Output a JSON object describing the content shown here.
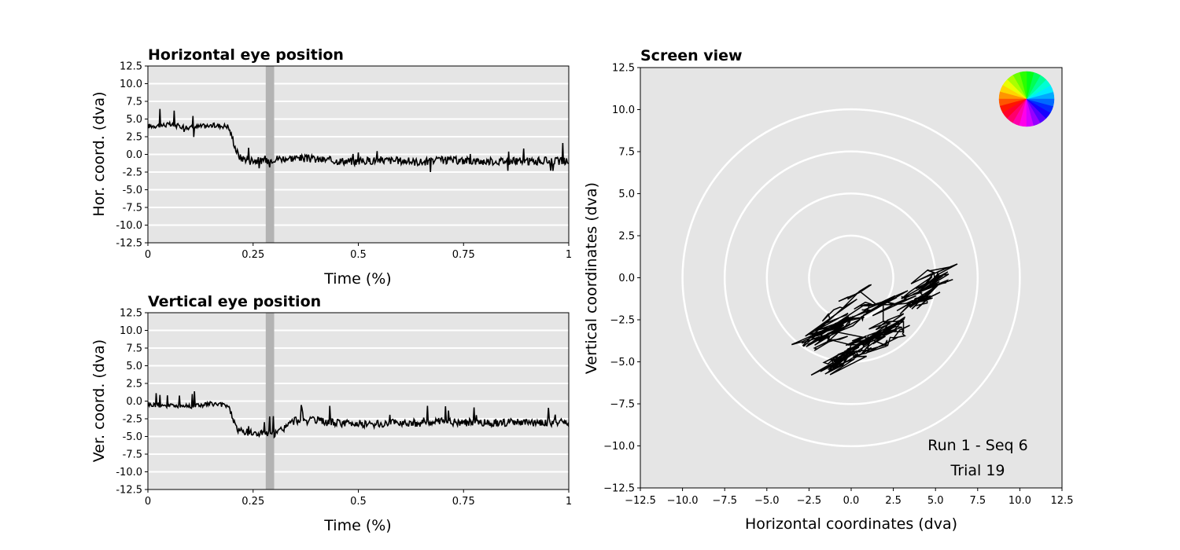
{
  "chart_data": [
    {
      "type": "line",
      "title": "Horizontal eye position",
      "xlabel": "Time (%)",
      "ylabel": "Hor. coord. (dva)",
      "xlim": [
        0,
        1
      ],
      "ylim": [
        -12.5,
        12.5
      ],
      "xticks": [
        "0",
        "0.25",
        "0.5",
        "0.75",
        "1"
      ],
      "yticks": [
        "-12.5",
        "-10.0",
        "-7.5",
        "-5.0",
        "-2.5",
        "0.0",
        "2.5",
        "5.0",
        "7.5",
        "10.0",
        "12.5"
      ],
      "grid": "horizontal",
      "shaded_x_range": [
        0.28,
        0.3
      ],
      "series": [
        {
          "x": [
            0,
            0.05,
            0.1,
            0.15,
            0.19,
            0.2,
            0.21,
            0.22,
            0.25,
            0.28,
            0.3,
            0.35,
            0.4,
            0.45,
            0.5,
            0.55,
            0.6,
            0.65,
            0.7,
            0.75,
            0.8,
            0.85,
            0.9,
            0.95,
            1
          ],
          "y": [
            4.0,
            4.2,
            3.8,
            4.1,
            4.0,
            2.5,
            0.5,
            -0.5,
            -0.8,
            -1.0,
            -0.6,
            -0.5,
            -0.7,
            -0.9,
            -1.0,
            -0.8,
            -0.9,
            -1.1,
            -0.8,
            -0.9,
            -1.0,
            -0.9,
            -1.0,
            -0.9,
            -1.0
          ]
        }
      ]
    },
    {
      "type": "line",
      "title": "Vertical eye position",
      "xlabel": "Time (%)",
      "ylabel": "Ver. coord. (dva)",
      "xlim": [
        0,
        1
      ],
      "ylim": [
        -12.5,
        12.5
      ],
      "xticks": [
        "0",
        "0.25",
        "0.5",
        "0.75",
        "1"
      ],
      "yticks": [
        "-12.5",
        "-10.0",
        "-7.5",
        "-5.0",
        "-2.5",
        "0.0",
        "2.5",
        "5.0",
        "7.5",
        "10.0",
        "12.5"
      ],
      "grid": "horizontal",
      "shaded_x_range": [
        0.28,
        0.3
      ],
      "series": [
        {
          "x": [
            0,
            0.05,
            0.1,
            0.15,
            0.19,
            0.2,
            0.21,
            0.22,
            0.25,
            0.28,
            0.3,
            0.33,
            0.35,
            0.4,
            0.45,
            0.5,
            0.55,
            0.6,
            0.65,
            0.7,
            0.75,
            0.8,
            0.85,
            0.9,
            0.95,
            1
          ],
          "y": [
            -0.5,
            -0.6,
            -0.7,
            -0.4,
            -0.6,
            -2.0,
            -3.8,
            -4.3,
            -4.6,
            -4.5,
            -4.8,
            -3.5,
            -2.7,
            -2.8,
            -3.1,
            -3.2,
            -3.3,
            -3.0,
            -3.1,
            -2.9,
            -3.0,
            -3.1,
            -3.0,
            -3.1,
            -3.0,
            -3.1
          ]
        }
      ]
    },
    {
      "type": "line",
      "title": "Screen view",
      "xlabel": "Horizontal coordinates (dva)",
      "ylabel": "Vertical coordinates (dva)",
      "xlim": [
        -12.5,
        12.5
      ],
      "ylim": [
        -12.5,
        12.5
      ],
      "xticks": [
        "−12.5",
        "−10.0",
        "−7.5",
        "−5.0",
        "−2.5",
        "0.0",
        "2.5",
        "5.0",
        "7.5",
        "10.0",
        "12.5"
      ],
      "yticks": [
        "−12.5",
        "−10.0",
        "−7.5",
        "−5.0",
        "−2.5",
        "0.0",
        "2.5",
        "5.0",
        "7.5",
        "10.0",
        "12.5"
      ],
      "circle_radii": [
        2.5,
        5.0,
        7.5,
        10.0
      ],
      "series": [
        {
          "x": [
            4.5,
            4.0,
            4.8,
            5.2,
            4.3,
            4.9,
            5.0,
            4.6,
            4.2,
            3.5,
            2.5,
            1.5,
            0.5,
            -0.5,
            -1.5,
            -2.5,
            -1.0,
            0.8,
            1.9,
            1.9,
            3.1,
            3.1,
            2.2,
            1.8,
            2.0,
            1.0,
            0.0,
            -0.5,
            0.0,
            -1.2,
            -1.8,
            -1.0,
            0.0,
            -0.5,
            -1.5,
            -1.0,
            1.0,
            2.0,
            1.0,
            0.0,
            -0.8,
            -1.0,
            -0.5,
            -0.2
          ],
          "y": [
            -1.3,
            -0.8,
            -0.2,
            0.2,
            -0.5,
            0.3,
            -0.4,
            -1.0,
            -1.4,
            -1.5,
            -1.6,
            -1.6,
            -0.8,
            -1.8,
            -2.7,
            -3.6,
            -2.8,
            -1.6,
            -1.6,
            -2.6,
            -2.6,
            -3.2,
            -3.2,
            -3.3,
            -3.5,
            -3.6,
            -4.4,
            -5.2,
            -4.0,
            -3.7,
            -3.4,
            -2.9,
            -2.4,
            -3.1,
            -3.4,
            -3.2,
            -3.6,
            -4.0,
            -4.3,
            -4.4,
            -4.6,
            -5.0,
            -4.9,
            -4.6
          ]
        }
      ],
      "annotations": [
        "Run 1 - Seq 6",
        "Trial 19"
      ]
    }
  ]
}
